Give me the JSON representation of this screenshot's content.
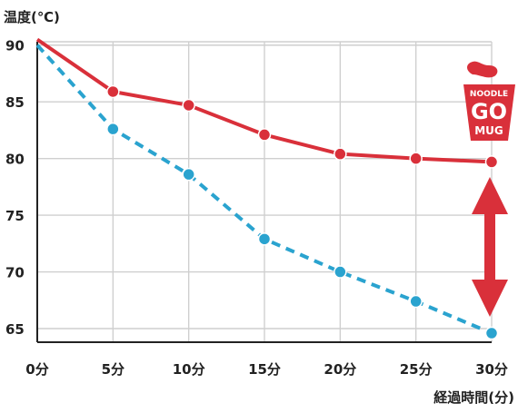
{
  "chart_data": {
    "type": "line",
    "ylabel": "温度(℃)",
    "xlabel": "経過時間(分)",
    "x": [
      0,
      5,
      10,
      15,
      20,
      25,
      30
    ],
    "x_tick_labels": [
      "0分",
      "5分",
      "10分",
      "15分",
      "20分",
      "25分",
      "30分"
    ],
    "y_ticks": [
      65,
      70,
      75,
      80,
      85,
      90
    ],
    "xlim": [
      0,
      30
    ],
    "ylim": [
      63.8,
      90.3
    ],
    "grid": true,
    "series": [
      {
        "values": [
          90.5,
          85.9,
          84.7,
          82.1,
          80.4,
          80.0,
          79.7
        ],
        "style": "solid",
        "color": "#d9303a"
      },
      {
        "values": [
          90.0,
          82.6,
          78.6,
          72.9,
          70.0,
          67.4,
          64.6
        ],
        "style": "dashed",
        "color": "#2aa3cf"
      }
    ]
  },
  "logo": {
    "line1": "NOODLE",
    "line2": "GO",
    "line3": "MUG",
    "color": "#d9303a"
  },
  "arrow_color": "#d9303a"
}
